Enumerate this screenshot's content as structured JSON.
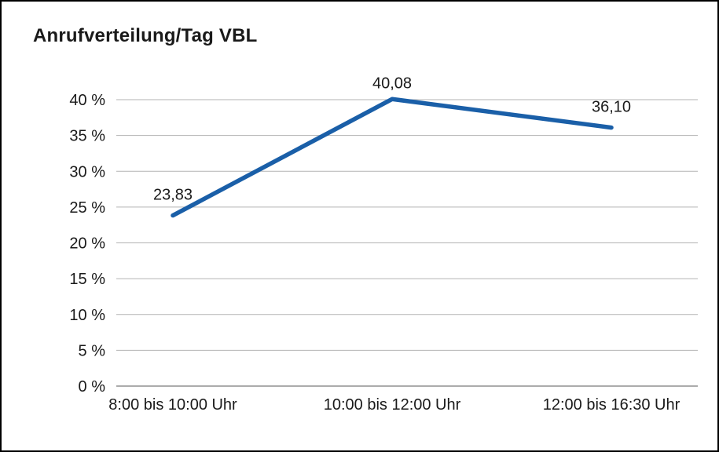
{
  "chart_data": {
    "type": "line",
    "title": "Anrufverteilung/Tag VBL",
    "categories": [
      "8:00 bis 10:00 Uhr",
      "10:00 bis 12:00 Uhr",
      "12:00 bis 16:30 Uhr"
    ],
    "series": [
      {
        "name": "Anrufverteilung",
        "values": [
          23.83,
          40.08,
          36.1
        ],
        "data_labels": [
          "23,83",
          "40,08",
          "36,10"
        ]
      }
    ],
    "xlabel": "",
    "ylabel": "",
    "ylim": [
      0,
      40
    ],
    "ytick_step": 5,
    "ytick_labels": [
      "0 %",
      "5 %",
      "10 %",
      "15 %",
      "20 %",
      "25 %",
      "30 %",
      "35 %",
      "40 %"
    ],
    "grid": true,
    "legend": "none",
    "colors": {
      "line": "#1a5fa8",
      "gridline": "#b3b3b3",
      "axis_line": "#595959",
      "text": "#1a1a1a",
      "background": "#ffffff",
      "border": "#000000"
    }
  }
}
